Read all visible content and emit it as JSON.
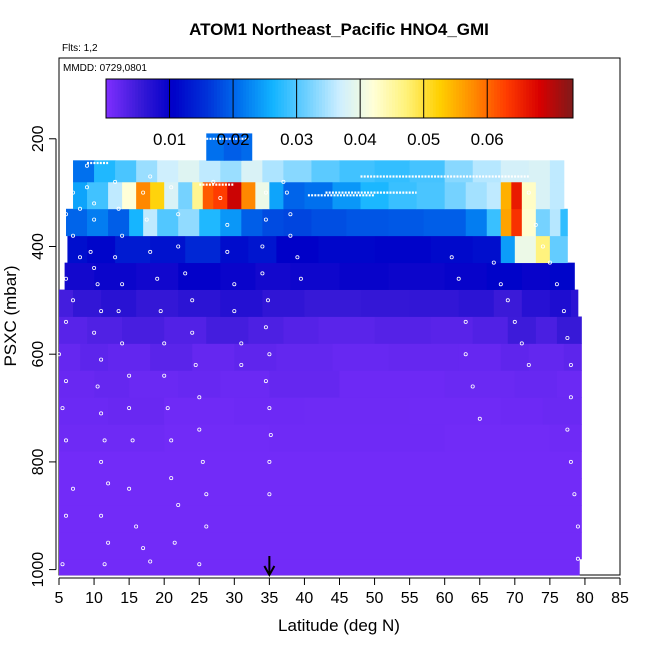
{
  "chart_data": {
    "type": "heatmap",
    "title": "ATOM1 Northeast_Pacific HNO4_GMI",
    "subtitle_flights": "Flts: 1,2",
    "subtitle_dates": "MMDD: 0729,0801",
    "xlabel": "Latitude (deg N)",
    "ylabel": "PSXC (mbar)",
    "xlim": [
      5,
      85
    ],
    "ylim": [
      1010,
      50
    ],
    "y_reversed": true,
    "x_ticks": [
      "5",
      "10",
      "15",
      "20",
      "25",
      "30",
      "35",
      "40",
      "45",
      "50",
      "55",
      "60",
      "65",
      "70",
      "75",
      "80",
      "85"
    ],
    "y_ticks": [
      "200",
      "400",
      "600",
      "800",
      "1000"
    ],
    "colorbar": {
      "min": 0.0,
      "max": 0.0735,
      "ticks": [
        "0.01",
        "0.02",
        "0.03",
        "0.04",
        "0.05",
        "0.06"
      ],
      "tick_values": [
        0.01,
        0.02,
        0.03,
        0.04,
        0.05,
        0.06
      ],
      "colors": [
        "#7f2fff",
        "#3a1ad8",
        "#0000c8",
        "#0030d8",
        "#0070ee",
        "#12b4ff",
        "#6ccfff",
        "#cdeeff",
        "#ffffd8",
        "#fff27a",
        "#ffd000",
        "#ff8c00",
        "#ff3c00",
        "#d80000",
        "#7f1a1a"
      ]
    },
    "marker_latitude": 35,
    "legend": "none",
    "grid": false,
    "layers": [
      {
        "p0": 980,
        "p1": 1010,
        "x0": 5.0,
        "x1": 79.2,
        "cells": [
          [
            5,
            0.001
          ]
        ]
      },
      {
        "p0": 930,
        "p1": 980,
        "x0": 5.0,
        "x1": 79.5,
        "cells": [
          [
            5,
            0.001
          ]
        ]
      },
      {
        "p0": 880,
        "p1": 930,
        "x0": 5.0,
        "x1": 79.5,
        "cells": [
          [
            5,
            0.001
          ]
        ]
      },
      {
        "p0": 830,
        "p1": 880,
        "x0": 5.0,
        "x1": 79.5,
        "cells": [
          [
            5,
            0.001
          ]
        ]
      },
      {
        "p0": 780,
        "p1": 830,
        "x0": 5.0,
        "x1": 79.5,
        "cells": [
          [
            5,
            0.001
          ]
        ]
      },
      {
        "p0": 730,
        "p1": 780,
        "x0": 5.0,
        "x1": 79.5,
        "cells": [
          [
            5,
            0.0013
          ],
          [
            20,
            0.0011
          ],
          [
            35,
            0.0012
          ],
          [
            60,
            0.0011
          ],
          [
            75,
            0.0012
          ]
        ]
      },
      {
        "p0": 680,
        "p1": 730,
        "x0": 5.0,
        "x1": 79.5,
        "cells": [
          [
            5,
            0.0015
          ],
          [
            12,
            0.0017
          ],
          [
            20,
            0.0012
          ],
          [
            30,
            0.0014
          ],
          [
            40,
            0.0013
          ],
          [
            55,
            0.0012
          ],
          [
            68,
            0.0014
          ],
          [
            74,
            0.0016
          ]
        ]
      },
      {
        "p0": 630,
        "p1": 680,
        "x0": 5.0,
        "x1": 79.5,
        "cells": [
          [
            5,
            0.0017
          ],
          [
            10,
            0.002
          ],
          [
            15,
            0.0016
          ],
          [
            22,
            0.0018
          ],
          [
            28,
            0.0015
          ],
          [
            35,
            0.002
          ],
          [
            45,
            0.0014
          ],
          [
            60,
            0.0016
          ],
          [
            70,
            0.0018
          ],
          [
            76,
            0.0015
          ]
        ]
      },
      {
        "p0": 580,
        "p1": 630,
        "x0": 5.0,
        "x1": 79.5,
        "cells": [
          [
            5,
            0.002
          ],
          [
            8,
            0.0026
          ],
          [
            12,
            0.0022
          ],
          [
            18,
            0.0028
          ],
          [
            24,
            0.002
          ],
          [
            30,
            0.0024
          ],
          [
            36,
            0.0021
          ],
          [
            44,
            0.0018
          ],
          [
            52,
            0.002
          ],
          [
            62,
            0.0019
          ],
          [
            68,
            0.0024
          ],
          [
            72,
            0.0021
          ],
          [
            77,
            0.0026
          ]
        ]
      },
      {
        "p0": 530,
        "p1": 580,
        "x0": 5.0,
        "x1": 79.5,
        "cells": [
          [
            5,
            0.003
          ],
          [
            9,
            0.0036
          ],
          [
            14,
            0.0042
          ],
          [
            20,
            0.0034
          ],
          [
            26,
            0.0045
          ],
          [
            32,
            0.0038
          ],
          [
            37,
            0.0032
          ],
          [
            42,
            0.0028
          ],
          [
            50,
            0.0032
          ],
          [
            58,
            0.0029
          ],
          [
            64,
            0.0035
          ],
          [
            69,
            0.005
          ],
          [
            73,
            0.004
          ],
          [
            76,
            0.0055
          ]
        ]
      },
      {
        "p0": 480,
        "p1": 530,
        "x0": 5.0,
        "x1": 79.0,
        "cells": [
          [
            5,
            0.0045
          ],
          [
            7,
            0.006
          ],
          [
            11,
            0.0068
          ],
          [
            16,
            0.0058
          ],
          [
            22,
            0.0065
          ],
          [
            28,
            0.0072
          ],
          [
            34,
            0.0062
          ],
          [
            40,
            0.0055
          ],
          [
            48,
            0.0058
          ],
          [
            55,
            0.006
          ],
          [
            62,
            0.0065
          ],
          [
            67,
            0.0052
          ],
          [
            71,
            0.007
          ],
          [
            75,
            0.0078
          ],
          [
            78,
            0.0066
          ]
        ]
      },
      {
        "p0": 430,
        "p1": 480,
        "x0": 5.8,
        "x1": 78.5,
        "cells": [
          [
            5.8,
            0.0088
          ],
          [
            10,
            0.0095
          ],
          [
            16,
            0.009
          ],
          [
            22,
            0.0102
          ],
          [
            28,
            0.0096
          ],
          [
            33,
            0.0088
          ],
          [
            38,
            0.0092
          ],
          [
            45,
            0.0098
          ],
          [
            52,
            0.0094
          ],
          [
            60,
            0.0099
          ],
          [
            66,
            0.0108
          ],
          [
            71,
            0.0098
          ],
          [
            75,
            0.011
          ]
        ]
      },
      {
        "p0": 380,
        "p1": 430,
        "x0": 6.2,
        "x1": 77.5,
        "cells": [
          [
            6.2,
            0.012
          ],
          [
            9,
            0.011
          ],
          [
            13,
            0.0135
          ],
          [
            18,
            0.0125
          ],
          [
            23,
            0.0148
          ],
          [
            28,
            0.0118
          ],
          [
            32,
            0.0128
          ],
          [
            36,
            0.0105
          ],
          [
            42,
            0.0112
          ],
          [
            50,
            0.0108
          ],
          [
            58,
            0.0115
          ],
          [
            64,
            0.012
          ],
          [
            68,
            0.0245
          ],
          [
            70,
            0.04
          ],
          [
            73,
            0.047
          ],
          [
            75,
            0.031
          ]
        ]
      },
      {
        "p0": 330,
        "p1": 380,
        "x0": 6.0,
        "x1": 77.5,
        "cells": [
          [
            6.0,
            0.02
          ],
          [
            9,
            0.022
          ],
          [
            12,
            0.0195
          ],
          [
            15,
            0.0265
          ],
          [
            17,
            0.036
          ],
          [
            19,
            0.03
          ],
          [
            22,
            0.0335
          ],
          [
            25,
            0.027
          ],
          [
            28,
            0.024
          ],
          [
            31,
            0.0195
          ],
          [
            34,
            0.018
          ],
          [
            37,
            0.0175
          ],
          [
            41,
            0.0182
          ],
          [
            46,
            0.0188
          ],
          [
            52,
            0.019
          ],
          [
            57,
            0.0195
          ],
          [
            63,
            0.022
          ],
          [
            66,
            0.0285
          ],
          [
            68,
            0.056
          ],
          [
            69.5,
            0.064
          ],
          [
            71,
            0.0425
          ],
          [
            73,
            0.032
          ],
          [
            75,
            0.0355
          ],
          [
            76.5,
            0.028
          ]
        ]
      },
      {
        "p0": 280,
        "p1": 330,
        "x0": 7.0,
        "x1": 77.0,
        "cells": [
          [
            7.0,
            0.025
          ],
          [
            9,
            0.029
          ],
          [
            12,
            0.036
          ],
          [
            14,
            0.042
          ],
          [
            16,
            0.058
          ],
          [
            18,
            0.052
          ],
          [
            20,
            0.038
          ],
          [
            22,
            0.032
          ],
          [
            24,
            0.046
          ],
          [
            25.5,
            0.061
          ],
          [
            27,
            0.063
          ],
          [
            29,
            0.069
          ],
          [
            31,
            0.058
          ],
          [
            33,
            0.04
          ],
          [
            35,
            0.025
          ],
          [
            37,
            0.02
          ],
          [
            40,
            0.021
          ],
          [
            44,
            0.024
          ],
          [
            48,
            0.0268
          ],
          [
            52,
            0.0285
          ],
          [
            56,
            0.0295
          ],
          [
            60,
            0.032
          ],
          [
            63,
            0.0345
          ],
          [
            66,
            0.036
          ],
          [
            68,
            0.055
          ],
          [
            69.5,
            0.066
          ],
          [
            71,
            0.043
          ],
          [
            73,
            0.038
          ],
          [
            75,
            0.036
          ]
        ]
      },
      {
        "p0": 240,
        "p1": 280,
        "x0": 7.0,
        "x1": 77.0,
        "cells": [
          [
            7.0,
            0.021
          ],
          [
            10,
            0.027
          ],
          [
            13,
            0.0295
          ],
          [
            16,
            0.034
          ],
          [
            19,
            0.037
          ],
          [
            22,
            0.0385
          ],
          [
            25,
            0.036
          ],
          [
            28,
            0.034
          ],
          [
            31,
            0.038
          ],
          [
            34,
            0.035
          ],
          [
            37,
            0.033
          ],
          [
            41,
            0.0305
          ],
          [
            45,
            0.029
          ],
          [
            50,
            0.0282
          ],
          [
            55,
            0.0292
          ],
          [
            60,
            0.033
          ],
          [
            64,
            0.0355
          ],
          [
            68,
            0.0375
          ],
          [
            72,
            0.038
          ],
          [
            75,
            0.036
          ]
        ]
      },
      {
        "p0": 190,
        "p1": 240,
        "x0": 26.0,
        "x1": 32.5,
        "cells": [
          [
            26.0,
            0.021
          ],
          [
            28.5,
            0.0195
          ],
          [
            31,
            0.0205
          ]
        ]
      }
    ],
    "points": [
      [
        6,
        270
      ],
      [
        7,
        300
      ],
      [
        6,
        340
      ],
      [
        7,
        380
      ],
      [
        8,
        330
      ],
      [
        8,
        420
      ],
      [
        6,
        460
      ],
      [
        7,
        500
      ],
      [
        6,
        540
      ],
      [
        5,
        600
      ],
      [
        6,
        650
      ],
      [
        5.5,
        700
      ],
      [
        6,
        760
      ],
      [
        7,
        850
      ],
      [
        6,
        900
      ],
      [
        5.5,
        990
      ],
      [
        9,
        250
      ],
      [
        9,
        290
      ],
      [
        10,
        320
      ],
      [
        10,
        350
      ],
      [
        9.5,
        410
      ],
      [
        10,
        440
      ],
      [
        10.5,
        470
      ],
      [
        11,
        520
      ],
      [
        10,
        560
      ],
      [
        11,
        610
      ],
      [
        10.5,
        660
      ],
      [
        11,
        710
      ],
      [
        11.5,
        760
      ],
      [
        11,
        800
      ],
      [
        12,
        840
      ],
      [
        11,
        900
      ],
      [
        12,
        950
      ],
      [
        11.5,
        990
      ],
      [
        13,
        280
      ],
      [
        13.5,
        330
      ],
      [
        14,
        380
      ],
      [
        13,
        420
      ],
      [
        14,
        470
      ],
      [
        13.5,
        520
      ],
      [
        14,
        580
      ],
      [
        15,
        640
      ],
      [
        15,
        700
      ],
      [
        15.5,
        760
      ],
      [
        15,
        850
      ],
      [
        16,
        920
      ],
      [
        17,
        960
      ],
      [
        18,
        985
      ],
      [
        17,
        300
      ],
      [
        18,
        270
      ],
      [
        17.5,
        350
      ],
      [
        18,
        410
      ],
      [
        19,
        460
      ],
      [
        19.5,
        520
      ],
      [
        20,
        580
      ],
      [
        20,
        640
      ],
      [
        20.5,
        700
      ],
      [
        21,
        760
      ],
      [
        21,
        830
      ],
      [
        22,
        880
      ],
      [
        21.5,
        950
      ],
      [
        21,
        290
      ],
      [
        22,
        340
      ],
      [
        22,
        400
      ],
      [
        23,
        450
      ],
      [
        24,
        500
      ],
      [
        24,
        560
      ],
      [
        24.5,
        620
      ],
      [
        25,
        680
      ],
      [
        25,
        740
      ],
      [
        25.5,
        800
      ],
      [
        26,
        860
      ],
      [
        26,
        920
      ],
      [
        25,
        990
      ],
      [
        27,
        280
      ],
      [
        28,
        310
      ],
      [
        29,
        360
      ],
      [
        29,
        410
      ],
      [
        30,
        470
      ],
      [
        30,
        520
      ],
      [
        31,
        580
      ],
      [
        31,
        620
      ],
      [
        34.5,
        300
      ],
      [
        34.5,
        350
      ],
      [
        34,
        400
      ],
      [
        34,
        450
      ],
      [
        34.8,
        500
      ],
      [
        34.5,
        550
      ],
      [
        35,
        600
      ],
      [
        34.5,
        650
      ],
      [
        35,
        700
      ],
      [
        35.2,
        750
      ],
      [
        35,
        800
      ],
      [
        35,
        860
      ],
      [
        37,
        280
      ],
      [
        37.5,
        300
      ],
      [
        38,
        340
      ],
      [
        38,
        380
      ],
      [
        39,
        420
      ],
      [
        39.5,
        460
      ],
      [
        61,
        420
      ],
      [
        62,
        460
      ],
      [
        63,
        540
      ],
      [
        63,
        600
      ],
      [
        64,
        660
      ],
      [
        65,
        720
      ],
      [
        67,
        430
      ],
      [
        68,
        470
      ],
      [
        69,
        500
      ],
      [
        70,
        540
      ],
      [
        71,
        580
      ],
      [
        72,
        620
      ],
      [
        72,
        300
      ],
      [
        73,
        360
      ],
      [
        74,
        400
      ],
      [
        75,
        430
      ],
      [
        76,
        470
      ],
      [
        77,
        520
      ],
      [
        77.5,
        570
      ],
      [
        78,
        620
      ],
      [
        78,
        680
      ],
      [
        77.5,
        740
      ],
      [
        78,
        800
      ],
      [
        78.5,
        860
      ],
      [
        79,
        920
      ],
      [
        79,
        980
      ]
    ],
    "flight_tracks": [
      [
        26.0,
        32.0,
        200
      ],
      [
        43.0,
        56.0,
        300
      ],
      [
        48.0,
        72.0,
        270
      ],
      [
        40.5,
        50.0,
        305
      ],
      [
        9.0,
        12.0,
        245
      ],
      [
        25.0,
        30.0,
        285
      ]
    ]
  }
}
